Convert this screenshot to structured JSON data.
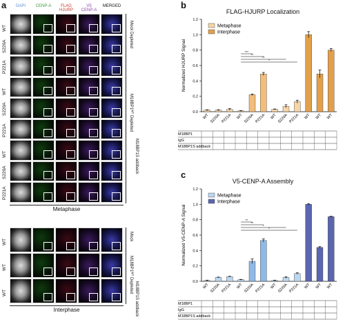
{
  "panel_a": {
    "label": "a",
    "channels": [
      {
        "text": "DAPI",
        "color": "#5b8fd6"
      },
      {
        "text": "CENP-A",
        "color": "#3e9a3e"
      },
      {
        "text": "FLAG\nHJURP",
        "color": "#c0392b"
      },
      {
        "text": "V5\nCENP-A",
        "color": "#8e44ad"
      },
      {
        "text": "MERGED",
        "color": "#111111"
      }
    ],
    "metaphase_rows": [
      "WT",
      "S220A",
      "P221A",
      "WT",
      "S220A",
      "P221A",
      "WT",
      "S220A",
      "P221A"
    ],
    "interphase_rows": [
      "WT",
      "WT",
      "WT"
    ],
    "group_labels": [
      "Mock Depleted",
      "M18BP1ᵂᵀ Depleted",
      "M18BP1S addback"
    ],
    "interphase_group_labels": [
      "Mock",
      "M18BP1ᵂᵀ Depleted",
      "M18BP1S addback"
    ],
    "metaphase_label": "Metaphase",
    "interphase_label": "Interphase"
  },
  "panel_b": {
    "label": "b",
    "title": "FLAG-HJURP Localization",
    "ylabel": "Normalized HJURP Signal",
    "legend": [
      "Metaphase",
      "Interphase"
    ],
    "sig_marks": [
      "***",
      "**",
      "**",
      "*"
    ],
    "table_rows": [
      "M18BP1",
      "IgG",
      "M18BP1S addback"
    ]
  },
  "panel_c": {
    "label": "c",
    "title": "V5-CENP-A Assembly",
    "ylabel": "Normalized V5-CENP-A Signal",
    "legend": [
      "Metaphase",
      "Interphase"
    ],
    "sig_marks": [
      "**",
      "**",
      "*",
      "*"
    ],
    "table_rows": [
      "M18BP1",
      "IgG",
      "M18BP1S addback"
    ]
  },
  "chart_data": [
    {
      "type": "bar",
      "title": "FLAG-HJURP Localization",
      "ylabel": "Normalized HJURP Signal",
      "ylim": [
        0,
        1.2
      ],
      "yticks": [
        0.0,
        0.2,
        0.4,
        0.6,
        0.8,
        1.0,
        1.2
      ],
      "categories": [
        "WT",
        "S220A",
        "P221A",
        "WT",
        "S220A",
        "P221A",
        "WT",
        "S220A",
        "P221A",
        "WT",
        "WT",
        "WT"
      ],
      "values": [
        0.02,
        0.02,
        0.03,
        0.01,
        0.22,
        0.49,
        0.03,
        0.07,
        0.13,
        1.0,
        0.49,
        0.8
      ],
      "errors": [
        0.005,
        0.005,
        0.01,
        0.005,
        0.01,
        0.02,
        0.005,
        0.02,
        0.02,
        0.04,
        0.05,
        0.02
      ],
      "stage": [
        "Metaphase",
        "Metaphase",
        "Metaphase",
        "Metaphase",
        "Metaphase",
        "Metaphase",
        "Metaphase",
        "Metaphase",
        "Metaphase",
        "Interphase",
        "Interphase",
        "Interphase"
      ],
      "colors": {
        "Metaphase": "#f6d6a8",
        "Interphase": "#e3a04a",
        "Metaphase_dark": "#f3bd7a"
      },
      "legend": [
        "Metaphase",
        "Interphase"
      ],
      "legend_position": "top-left"
    },
    {
      "type": "bar",
      "title": "V5-CENP-A Assembly",
      "ylabel": "Normalized V5-CENP-A Signal",
      "ylim": [
        0,
        1.2
      ],
      "yticks": [
        0.0,
        0.2,
        0.4,
        0.6,
        0.8,
        1.0,
        1.2
      ],
      "categories": [
        "WT",
        "S220A",
        "P221A",
        "WT",
        "S220A",
        "P221A",
        "WT",
        "S220A",
        "P221A",
        "WT",
        "WT",
        "WT"
      ],
      "values": [
        0.01,
        0.05,
        0.06,
        0.02,
        0.26,
        0.53,
        0.01,
        0.05,
        0.1,
        1.0,
        0.44,
        0.84
      ],
      "errors": [
        0.005,
        0.005,
        0.005,
        0.005,
        0.03,
        0.02,
        0.005,
        0.01,
        0.01,
        0.01,
        0.01,
        0.005
      ],
      "stage": [
        "Metaphase",
        "Metaphase",
        "Metaphase",
        "Metaphase",
        "Metaphase",
        "Metaphase",
        "Metaphase",
        "Metaphase",
        "Metaphase",
        "Interphase",
        "Interphase",
        "Interphase"
      ],
      "colors": {
        "Metaphase": "#bcd7f0",
        "Interphase": "#5b66b0",
        "Metaphase_dark": "#8fb9e6"
      },
      "legend": [
        "Metaphase",
        "Interphase"
      ],
      "legend_position": "top-left"
    }
  ]
}
